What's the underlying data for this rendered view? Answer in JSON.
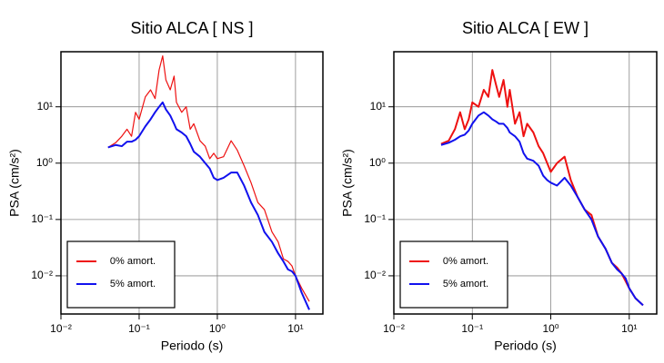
{
  "chart_data": [
    {
      "type": "line",
      "title": "Sitio ALCA [ NS ]",
      "x_label": "Periodo (s)",
      "y_label": "PSA (cm/s²)",
      "log_x": true,
      "log_y": true,
      "grid": true,
      "legend": "lower left",
      "xlim": [
        0.01,
        22.4
      ],
      "ylim": [
        0.0021,
        95
      ],
      "xticks": [
        {
          "value": 0.01,
          "label": "10⁻²"
        },
        {
          "value": 0.1,
          "label": "10⁻¹"
        },
        {
          "value": 1,
          "label": "10⁰"
        },
        {
          "value": 10,
          "label": "10¹"
        }
      ],
      "yticks": [
        {
          "value": 0.01,
          "label": "10⁻²"
        },
        {
          "value": 0.1,
          "label": "10⁻¹"
        },
        {
          "value": 1,
          "label": "10⁰"
        },
        {
          "value": 10,
          "label": "10¹"
        }
      ],
      "x": [
        0.04,
        0.05,
        0.06,
        0.07,
        0.08,
        0.09,
        0.1,
        0.12,
        0.14,
        0.16,
        0.18,
        0.2,
        0.22,
        0.25,
        0.28,
        0.3,
        0.35,
        0.4,
        0.45,
        0.5,
        0.6,
        0.7,
        0.8,
        0.9,
        1.0,
        1.2,
        1.5,
        1.8,
        2.2,
        2.7,
        3.3,
        4,
        5,
        6,
        7,
        8,
        9,
        10,
        12,
        15
      ],
      "series": [
        {
          "name": "0% amort.",
          "color": "#ee1111",
          "width": 1.2,
          "values": [
            1.9,
            2.3,
            3,
            4,
            3,
            8,
            6,
            15,
            20,
            14,
            45,
            80,
            30,
            20,
            35,
            12,
            8,
            10,
            4,
            5,
            2.5,
            2,
            1.2,
            1.5,
            1.2,
            1.3,
            2.5,
            1.7,
            0.9,
            0.45,
            0.2,
            0.15,
            0.06,
            0.04,
            0.02,
            0.018,
            0.015,
            0.01,
            0.006,
            0.0035
          ]
        },
        {
          "name": "5% amort.",
          "color": "#1111ee",
          "width": 2,
          "values": [
            1.9,
            2.1,
            2.0,
            2.4,
            2.4,
            2.6,
            3.0,
            4.5,
            6,
            8,
            10,
            12,
            9,
            7,
            5,
            4,
            3.5,
            3,
            2.2,
            1.6,
            1.3,
            1.0,
            0.8,
            0.55,
            0.5,
            0.55,
            0.68,
            0.68,
            0.4,
            0.2,
            0.12,
            0.06,
            0.04,
            0.025,
            0.018,
            0.013,
            0.012,
            0.01,
            0.005,
            0.0025
          ]
        }
      ]
    },
    {
      "type": "line",
      "title": "Sitio ALCA [ EW ]",
      "x_label": "Periodo (s)",
      "y_label": "PSA (cm/s²)",
      "log_x": true,
      "log_y": true,
      "grid": true,
      "legend": "lower left",
      "xlim": [
        0.01,
        22.4
      ],
      "ylim": [
        0.0021,
        95
      ],
      "xticks": [
        {
          "value": 0.01,
          "label": "10⁻²"
        },
        {
          "value": 0.1,
          "label": "10⁻¹"
        },
        {
          "value": 1,
          "label": "10⁰"
        },
        {
          "value": 10,
          "label": "10¹"
        }
      ],
      "yticks": [
        {
          "value": 0.01,
          "label": "10⁻²"
        },
        {
          "value": 0.1,
          "label": "10⁻¹"
        },
        {
          "value": 1,
          "label": "10⁰"
        },
        {
          "value": 10,
          "label": "10¹"
        }
      ],
      "x": [
        0.04,
        0.05,
        0.06,
        0.07,
        0.08,
        0.09,
        0.1,
        0.12,
        0.14,
        0.16,
        0.18,
        0.2,
        0.22,
        0.25,
        0.28,
        0.3,
        0.35,
        0.4,
        0.45,
        0.5,
        0.6,
        0.7,
        0.8,
        0.9,
        1.0,
        1.2,
        1.5,
        1.8,
        2.2,
        2.7,
        3.3,
        4,
        5,
        6,
        7,
        8,
        9,
        10,
        12,
        15
      ],
      "series": [
        {
          "name": "0% amort.",
          "color": "#ee1111",
          "width": 2,
          "values": [
            2.2,
            2.5,
            4,
            8,
            4,
            6,
            12,
            10,
            20,
            15,
            45,
            25,
            15,
            30,
            10,
            20,
            5,
            8,
            3,
            5,
            3.5,
            2,
            1.5,
            1.0,
            0.7,
            1.0,
            1.3,
            0.5,
            0.25,
            0.15,
            0.12,
            0.05,
            0.03,
            0.017,
            0.014,
            0.011,
            0.008,
            0.006,
            0.004,
            0.003
          ]
        },
        {
          "name": "5% amort.",
          "color": "#1111ee",
          "width": 2,
          "values": [
            2.1,
            2.3,
            2.6,
            3.0,
            3.2,
            3.8,
            5,
            7,
            8,
            7,
            6,
            5.5,
            5.0,
            5.0,
            4.2,
            3.5,
            3.0,
            2.4,
            1.5,
            1.2,
            1.1,
            0.9,
            0.6,
            0.5,
            0.45,
            0.4,
            0.55,
            0.4,
            0.25,
            0.15,
            0.1,
            0.05,
            0.03,
            0.017,
            0.013,
            0.011,
            0.009,
            0.006,
            0.004,
            0.003
          ]
        }
      ]
    }
  ]
}
